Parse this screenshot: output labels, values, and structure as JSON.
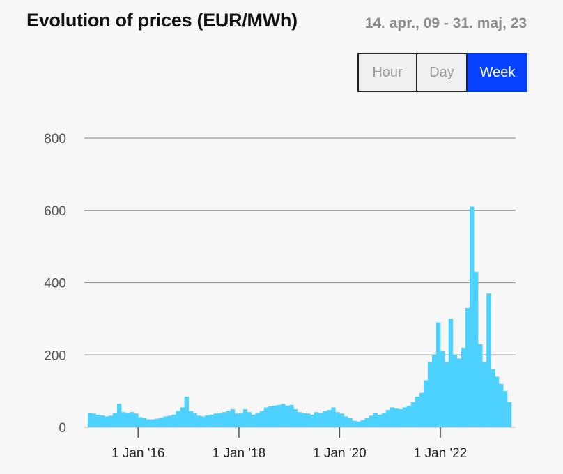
{
  "header": {
    "title": "Evolution of prices (EUR/MWh)",
    "date_range": "14. apr., 09 - 31. maj, 23"
  },
  "tabs": [
    {
      "label": "Hour",
      "active": false
    },
    {
      "label": "Day",
      "active": false
    },
    {
      "label": "Week",
      "active": true
    }
  ],
  "colors": {
    "series": "#4dd2ff",
    "active_tab": "#0541ff",
    "gridline": "#999999"
  },
  "chart_data": {
    "type": "bar",
    "title": "Evolution of prices (EUR/MWh)",
    "xlabel": "",
    "ylabel": "",
    "ylim": [
      0,
      800
    ],
    "y_ticks": [
      0,
      200,
      400,
      600,
      800
    ],
    "x_ticks": [
      {
        "date": "2016-01-01",
        "label": "1 Jan '16"
      },
      {
        "date": "2018-01-01",
        "label": "1 Jan '18"
      },
      {
        "date": "2020-01-01",
        "label": "1 Jan '20"
      },
      {
        "date": "2022-01-01",
        "label": "1 Jan '22"
      }
    ],
    "x_range": [
      "2015-01-01",
      "2023-05-31"
    ],
    "grid": true,
    "series": [
      {
        "name": "",
        "points": [
          [
            "2015-01-01",
            40
          ],
          [
            "2015-02-01",
            38
          ],
          [
            "2015-03-01",
            35
          ],
          [
            "2015-04-01",
            33
          ],
          [
            "2015-05-01",
            30
          ],
          [
            "2015-06-01",
            32
          ],
          [
            "2015-07-01",
            40
          ],
          [
            "2015-08-01",
            65
          ],
          [
            "2015-09-01",
            42
          ],
          [
            "2015-10-01",
            40
          ],
          [
            "2015-11-01",
            42
          ],
          [
            "2015-12-01",
            38
          ],
          [
            "2016-01-01",
            28
          ],
          [
            "2016-02-01",
            25
          ],
          [
            "2016-03-01",
            22
          ],
          [
            "2016-04-01",
            22
          ],
          [
            "2016-05-01",
            24
          ],
          [
            "2016-06-01",
            26
          ],
          [
            "2016-07-01",
            30
          ],
          [
            "2016-08-01",
            32
          ],
          [
            "2016-09-01",
            35
          ],
          [
            "2016-10-01",
            45
          ],
          [
            "2016-11-01",
            55
          ],
          [
            "2016-12-01",
            85
          ],
          [
            "2017-01-01",
            45
          ],
          [
            "2017-02-01",
            40
          ],
          [
            "2017-03-01",
            32
          ],
          [
            "2017-04-01",
            30
          ],
          [
            "2017-05-01",
            33
          ],
          [
            "2017-06-01",
            35
          ],
          [
            "2017-07-01",
            38
          ],
          [
            "2017-08-01",
            40
          ],
          [
            "2017-09-01",
            42
          ],
          [
            "2017-10-01",
            45
          ],
          [
            "2017-11-01",
            50
          ],
          [
            "2017-12-01",
            38
          ],
          [
            "2018-01-01",
            40
          ],
          [
            "2018-02-01",
            50
          ],
          [
            "2018-03-01",
            42
          ],
          [
            "2018-04-01",
            35
          ],
          [
            "2018-05-01",
            40
          ],
          [
            "2018-06-01",
            45
          ],
          [
            "2018-07-01",
            55
          ],
          [
            "2018-08-01",
            58
          ],
          [
            "2018-09-01",
            60
          ],
          [
            "2018-10-01",
            62
          ],
          [
            "2018-11-01",
            65
          ],
          [
            "2018-12-01",
            60
          ],
          [
            "2019-01-01",
            62
          ],
          [
            "2019-02-01",
            50
          ],
          [
            "2019-03-01",
            42
          ],
          [
            "2019-04-01",
            40
          ],
          [
            "2019-05-01",
            38
          ],
          [
            "2019-06-01",
            35
          ],
          [
            "2019-07-01",
            42
          ],
          [
            "2019-08-01",
            40
          ],
          [
            "2019-09-01",
            45
          ],
          [
            "2019-10-01",
            48
          ],
          [
            "2019-11-01",
            55
          ],
          [
            "2019-12-01",
            42
          ],
          [
            "2020-01-01",
            38
          ],
          [
            "2020-02-01",
            30
          ],
          [
            "2020-03-01",
            25
          ],
          [
            "2020-04-01",
            18
          ],
          [
            "2020-05-01",
            16
          ],
          [
            "2020-06-01",
            20
          ],
          [
            "2020-07-01",
            25
          ],
          [
            "2020-08-01",
            32
          ],
          [
            "2020-09-01",
            40
          ],
          [
            "2020-10-01",
            35
          ],
          [
            "2020-11-01",
            40
          ],
          [
            "2020-12-01",
            48
          ],
          [
            "2021-01-01",
            55
          ],
          [
            "2021-02-01",
            52
          ],
          [
            "2021-03-01",
            50
          ],
          [
            "2021-04-01",
            55
          ],
          [
            "2021-05-01",
            60
          ],
          [
            "2021-06-01",
            70
          ],
          [
            "2021-07-01",
            85
          ],
          [
            "2021-08-01",
            95
          ],
          [
            "2021-09-01",
            130
          ],
          [
            "2021-10-01",
            180
          ],
          [
            "2021-11-01",
            200
          ],
          [
            "2021-12-01",
            290
          ],
          [
            "2022-01-01",
            210
          ],
          [
            "2022-02-01",
            180
          ],
          [
            "2022-03-01",
            300
          ],
          [
            "2022-04-01",
            200
          ],
          [
            "2022-05-01",
            190
          ],
          [
            "2022-06-01",
            220
          ],
          [
            "2022-07-01",
            330
          ],
          [
            "2022-08-01",
            610
          ],
          [
            "2022-09-01",
            430
          ],
          [
            "2022-10-01",
            230
          ],
          [
            "2022-11-01",
            180
          ],
          [
            "2022-12-01",
            370
          ],
          [
            "2023-01-01",
            160
          ],
          [
            "2023-02-01",
            140
          ],
          [
            "2023-03-01",
            120
          ],
          [
            "2023-04-01",
            100
          ],
          [
            "2023-05-01",
            70
          ]
        ]
      }
    ]
  }
}
